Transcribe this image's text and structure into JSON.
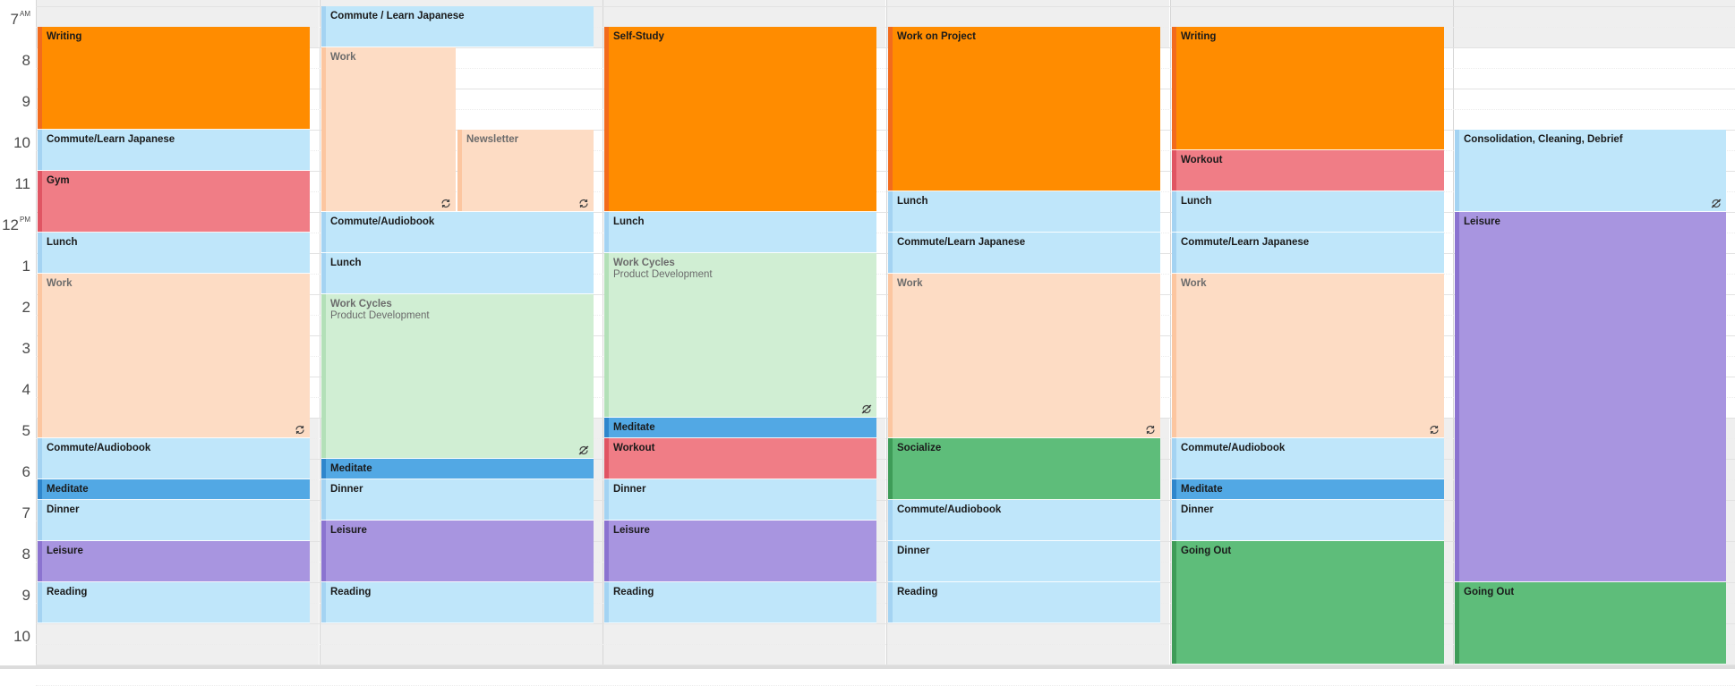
{
  "time_labels": [
    {
      "hour": "7",
      "ampm": "AM"
    },
    {
      "hour": "8",
      "ampm": ""
    },
    {
      "hour": "9",
      "ampm": ""
    },
    {
      "hour": "10",
      "ampm": ""
    },
    {
      "hour": "11",
      "ampm": ""
    },
    {
      "hour": "12",
      "ampm": "PM"
    },
    {
      "hour": "1",
      "ampm": ""
    },
    {
      "hour": "2",
      "ampm": ""
    },
    {
      "hour": "3",
      "ampm": ""
    },
    {
      "hour": "4",
      "ampm": ""
    },
    {
      "hour": "5",
      "ampm": ""
    },
    {
      "hour": "6",
      "ampm": ""
    },
    {
      "hour": "7",
      "ampm": ""
    },
    {
      "hour": "8",
      "ampm": ""
    },
    {
      "hour": "9",
      "ampm": ""
    },
    {
      "hour": "10",
      "ampm": ""
    }
  ],
  "colors": {
    "orange": "#ff8c00",
    "light_blue": "#bfe6fa",
    "red": "#f07d86",
    "peach": "#fddcc4",
    "light_green": "#d0eed3",
    "medium_blue": "#52a8e4",
    "purple": "#a895e0",
    "green": "#5ebd7a"
  },
  "days": [
    {
      "events": [
        {
          "title": "Writing",
          "color": "orange",
          "start": 7.5,
          "end": 10
        },
        {
          "title": "Commute/Learn Japanese",
          "color": "light_blue",
          "start": 10,
          "end": 11
        },
        {
          "title": "Gym",
          "color": "red",
          "start": 11,
          "end": 12.5
        },
        {
          "title": "Lunch",
          "color": "light_blue",
          "start": 12.5,
          "end": 13.5
        },
        {
          "title": "Work",
          "color": "peach",
          "start": 13.5,
          "end": 17.5,
          "icon": "recurring-icon"
        },
        {
          "title": "Commute/Audiobook",
          "color": "light_blue",
          "start": 17.5,
          "end": 18.5
        },
        {
          "title": "Meditate",
          "color": "medium_blue",
          "start": 18.5,
          "end": 19
        },
        {
          "title": "Dinner",
          "color": "light_blue",
          "start": 19,
          "end": 20
        },
        {
          "title": "Leisure",
          "color": "purple",
          "start": 20,
          "end": 21
        },
        {
          "title": "Reading",
          "color": "light_blue",
          "start": 21,
          "end": 22
        }
      ]
    },
    {
      "events": [
        {
          "title": "Commute / Learn Japanese",
          "color": "light_blue",
          "start": 7,
          "end": 8
        },
        {
          "title": "Work",
          "color": "peach",
          "start": 8,
          "end": 12,
          "lane": 0,
          "lanes": 2,
          "icon": "recurring-icon"
        },
        {
          "title": "Newsletter",
          "color": "peach",
          "start": 10,
          "end": 12,
          "lane": 1,
          "lanes": 2,
          "icon": "recurring-icon"
        },
        {
          "title": "Commute/Audiobook",
          "color": "light_blue",
          "start": 12,
          "end": 13
        },
        {
          "title": "Lunch",
          "color": "light_blue",
          "start": 13,
          "end": 14
        },
        {
          "title": "Work Cycles",
          "subtitle": "Product Development",
          "color": "light_green",
          "start": 14,
          "end": 18,
          "icon": "recurring-exception-icon"
        },
        {
          "title": "Meditate",
          "color": "medium_blue",
          "start": 18,
          "end": 18.5
        },
        {
          "title": "Dinner",
          "color": "light_blue",
          "start": 18.5,
          "end": 19.5
        },
        {
          "title": "Leisure",
          "color": "purple",
          "start": 19.5,
          "end": 21
        },
        {
          "title": "Reading",
          "color": "light_blue",
          "start": 21,
          "end": 22
        }
      ]
    },
    {
      "events": [
        {
          "title": "Self-Study",
          "color": "orange",
          "start": 7.5,
          "end": 12
        },
        {
          "title": "Lunch",
          "color": "light_blue",
          "start": 12,
          "end": 13
        },
        {
          "title": "Work Cycles",
          "subtitle": "Product Development",
          "color": "light_green",
          "start": 13,
          "end": 17,
          "icon": "recurring-exception-icon"
        },
        {
          "title": "Meditate",
          "color": "medium_blue",
          "start": 17,
          "end": 17.5
        },
        {
          "title": "Workout",
          "color": "red",
          "start": 17.5,
          "end": 18.5
        },
        {
          "title": "Dinner",
          "color": "light_blue",
          "start": 18.5,
          "end": 19.5
        },
        {
          "title": "Leisure",
          "color": "purple",
          "start": 19.5,
          "end": 21
        },
        {
          "title": "Reading",
          "color": "light_blue",
          "start": 21,
          "end": 22
        }
      ]
    },
    {
      "events": [
        {
          "title": "Work on Project",
          "color": "orange",
          "start": 7.5,
          "end": 11.5
        },
        {
          "title": "Lunch",
          "color": "light_blue",
          "start": 11.5,
          "end": 12.5
        },
        {
          "title": "Commute/Learn Japanese",
          "color": "light_blue",
          "start": 12.5,
          "end": 13.5
        },
        {
          "title": "Work",
          "color": "peach",
          "start": 13.5,
          "end": 17.5,
          "icon": "recurring-icon"
        },
        {
          "title": "Socialize",
          "color": "green",
          "start": 17.5,
          "end": 19
        },
        {
          "title": "Commute/Audiobook",
          "color": "light_blue",
          "start": 19,
          "end": 20
        },
        {
          "title": "Dinner",
          "color": "light_blue",
          "start": 20,
          "end": 21
        },
        {
          "title": "Reading",
          "color": "light_blue",
          "start": 21,
          "end": 22
        }
      ]
    },
    {
      "events": [
        {
          "title": "Writing",
          "color": "orange",
          "start": 7.5,
          "end": 10.5
        },
        {
          "title": "Workout",
          "color": "red",
          "start": 10.5,
          "end": 11.5
        },
        {
          "title": "Lunch",
          "color": "light_blue",
          "start": 11.5,
          "end": 12.5
        },
        {
          "title": "Commute/Learn Japanese",
          "color": "light_blue",
          "start": 12.5,
          "end": 13.5
        },
        {
          "title": "Work",
          "color": "peach",
          "start": 13.5,
          "end": 17.5,
          "icon": "recurring-icon"
        },
        {
          "title": "Commute/Audiobook",
          "color": "light_blue",
          "start": 17.5,
          "end": 18.5
        },
        {
          "title": "Meditate",
          "color": "medium_blue",
          "start": 18.5,
          "end": 19
        },
        {
          "title": "Dinner",
          "color": "light_blue",
          "start": 19,
          "end": 20
        },
        {
          "title": "Going Out",
          "color": "green",
          "start": 20,
          "end": 23
        }
      ]
    },
    {
      "events": [
        {
          "title": "Consolidation, Cleaning, Debrief",
          "color": "light_blue",
          "start": 10,
          "end": 12,
          "icon": "recurring-exception-icon"
        },
        {
          "title": "Leisure",
          "color": "purple",
          "start": 12,
          "end": 21
        },
        {
          "title": "Going Out",
          "color": "green",
          "start": 21,
          "end": 23
        }
      ]
    }
  ]
}
